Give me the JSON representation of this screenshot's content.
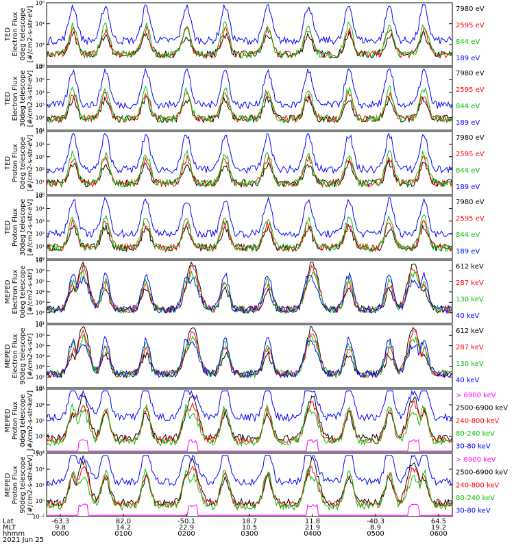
{
  "chart_data": {
    "type": "line",
    "title": "",
    "date_label": "2021 Jun 25",
    "x_axis": {
      "row_labels": [
        "Lat",
        "MLT",
        "hhmm"
      ],
      "ticks": [
        {
          "hhmm": "0000",
          "lat": "-63.3",
          "mlt": "9.8"
        },
        {
          "hhmm": "0100",
          "lat": "82.0",
          "mlt": "14.2"
        },
        {
          "hhmm": "0200",
          "lat": "-50.1",
          "mlt": "22.9"
        },
        {
          "hhmm": "0300",
          "lat": "18.7",
          "mlt": "10.5"
        },
        {
          "hhmm": "0400",
          "lat": "11.8",
          "mlt": "21.9"
        },
        {
          "hhmm": "0500",
          "lat": "-40.3",
          "mlt": "8.9"
        },
        {
          "hhmm": "0600",
          "lat": "64.5",
          "mlt": "19.2"
        }
      ]
    },
    "panels": [
      {
        "ylabel": [
          "TED",
          "Electron Flux",
          "0deg telescope",
          "[#/cm2-s-str-eV]"
        ],
        "ylim_log": [
          0,
          6
        ],
        "yticks": [
          "10⁰",
          "10²",
          "10⁴",
          "10⁶"
        ],
        "channels": [
          {
            "label": "7980 eV",
            "color": "#000000"
          },
          {
            "label": "2595 eV",
            "color": "#ff0000"
          },
          {
            "label": "844 eV",
            "color": "#00c000"
          },
          {
            "label": "189 eV",
            "color": "#0000ff"
          }
        ]
      },
      {
        "ylabel": [
          "TED",
          "Electron Flux",
          "30deg telescope",
          "[#/cm2-s-str-eV]"
        ],
        "ylim_log": [
          1,
          6
        ],
        "yticks": [
          "10¹",
          "10²",
          "10³",
          "10⁴",
          "10⁵",
          "10⁶"
        ],
        "channels": [
          {
            "label": "7980 eV",
            "color": "#000000"
          },
          {
            "label": "2595 eV",
            "color": "#ff0000"
          },
          {
            "label": "844 eV",
            "color": "#00c000"
          },
          {
            "label": "189 eV",
            "color": "#0000ff"
          }
        ]
      },
      {
        "ylabel": [
          "TED",
          "Proton Flux",
          "0deg telescope",
          "[#/cm2-s-str-eV]"
        ],
        "ylim_log": [
          0,
          5
        ],
        "yticks": [
          "10⁰",
          "10¹",
          "10²",
          "10³",
          "10⁴",
          "10⁵"
        ],
        "channels": [
          {
            "label": "7980 eV",
            "color": "#000000"
          },
          {
            "label": "2595 eV",
            "color": "#ff0000"
          },
          {
            "label": "844 eV",
            "color": "#00c000"
          },
          {
            "label": "189 eV",
            "color": "#0000ff"
          }
        ]
      },
      {
        "ylabel": [
          "TED",
          "Proton Flux",
          "30deg telescope",
          "[#/cm2-s-str-eV]"
        ],
        "ylim_log": [
          0,
          5
        ],
        "yticks": [
          "10⁰",
          "10¹",
          "10²",
          "10³",
          "10⁴",
          "10⁵"
        ],
        "channels": [
          {
            "label": "7980 eV",
            "color": "#000000"
          },
          {
            "label": "2595 eV",
            "color": "#ff0000"
          },
          {
            "label": "844 eV",
            "color": "#00c000"
          },
          {
            "label": "189 eV",
            "color": "#0000ff"
          }
        ]
      },
      {
        "ylabel": [
          "MEPED",
          "Electron Flux",
          "0deg telescope",
          "[#/cm2-s-str]"
        ],
        "ylim_log": [
          1,
          7
        ],
        "yticks": [
          "10¹",
          "10²",
          "10³",
          "10⁴",
          "10⁵",
          "10⁶",
          "10⁷"
        ],
        "channels": [
          {
            "label": "612 keV",
            "color": "#000000"
          },
          {
            "label": "287 keV",
            "color": "#ff0000"
          },
          {
            "label": "130 keV",
            "color": "#00c000"
          },
          {
            "label": "40 keV",
            "color": "#0000ff"
          }
        ]
      },
      {
        "ylabel": [
          "MEPED",
          "Electron Flux",
          "90deg telescope",
          "[#/cm2-s-str]"
        ],
        "ylim_log": [
          1,
          7
        ],
        "yticks": [
          "10¹",
          "10²",
          "10³",
          "10⁴",
          "10⁵",
          "10⁶",
          "10⁷"
        ],
        "channels": [
          {
            "label": "612 keV",
            "color": "#000000"
          },
          {
            "label": "287 keV",
            "color": "#ff0000"
          },
          {
            "label": "130 keV",
            "color": "#00c000"
          },
          {
            "label": "40 keV",
            "color": "#0000ff"
          }
        ]
      },
      {
        "ylabel": [
          "MEPED",
          "Proton Flux",
          "0deg telescope",
          "[#/cm2-s-str-keV]"
        ],
        "ylim_log": [
          -2,
          6
        ],
        "yticks": [
          "10⁻²",
          "10⁰",
          "10²",
          "10⁴",
          "10⁶"
        ],
        "channels": [
          {
            "label": "> 6900 keV",
            "color": "#ff00ff"
          },
          {
            "label": "2500-6900 keV",
            "color": "#000000"
          },
          {
            "label": "240-800 keV",
            "color": "#ff0000"
          },
          {
            "label": "80-240 keV",
            "color": "#00c000"
          },
          {
            "label": "30-80 keV",
            "color": "#0000ff"
          }
        ]
      },
      {
        "ylabel": [
          "MEPED",
          "Proton Flux",
          "90deg telescope",
          "[#/cm2-s-str-keV]"
        ],
        "ylim_log": [
          -2,
          6
        ],
        "yticks": [
          "10⁻²",
          "10⁰",
          "10²",
          "10⁴",
          "10⁶"
        ],
        "channels": [
          {
            "label": "> 6900 keV",
            "color": "#ff00ff"
          },
          {
            "label": "2500-6900 keV",
            "color": "#000000"
          },
          {
            "label": "240-800 keV",
            "color": "#ff0000"
          },
          {
            "label": "80-240 keV",
            "color": "#00c000"
          },
          {
            "label": "30-80 keV",
            "color": "#0000ff"
          }
        ]
      }
    ]
  }
}
